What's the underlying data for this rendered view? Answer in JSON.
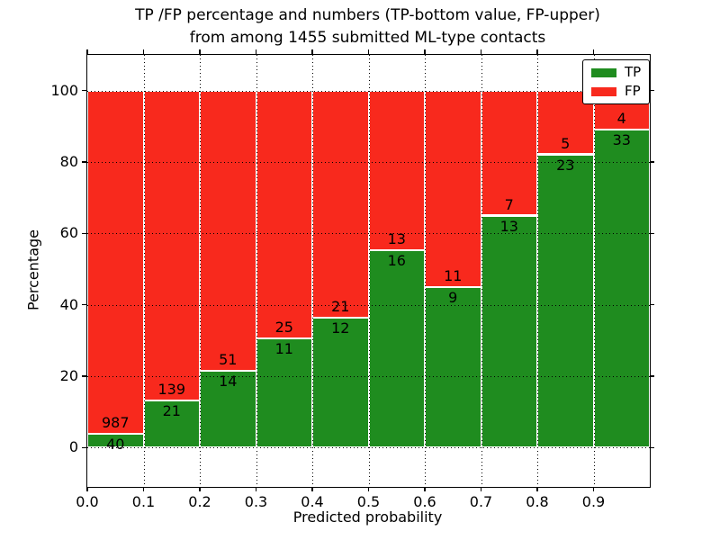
{
  "figure": {
    "title_line1": "TP /FP percentage and numbers (TP-bottom value, FP-upper)",
    "title_line2": "from among 1455 submitted ML-type contacts"
  },
  "chart_data": {
    "type": "bar",
    "subtype": "stacked-100-percent",
    "title": "TP /FP percentage and numbers (TP-bottom value, FP-upper) from among 1455 submitted ML-type contacts",
    "xlabel": "Predicted probability",
    "ylabel": "Percentage",
    "total_contacts": 1455,
    "bin_width": 0.1,
    "bins": [
      0.0,
      0.1,
      0.2,
      0.3,
      0.4,
      0.5,
      0.6,
      0.7,
      0.8,
      0.9
    ],
    "x_tick_labels": [
      "0.0",
      "0.1",
      "0.2",
      "0.3",
      "0.4",
      "0.5",
      "0.6",
      "0.7",
      "0.8",
      "0.9"
    ],
    "y_ticks": [
      0,
      20,
      40,
      60,
      80,
      100
    ],
    "xlim": [
      0.0,
      1.0
    ],
    "ylim": [
      -11,
      110
    ],
    "grid": "dotted",
    "legend_position": "upper-right",
    "series": [
      {
        "name": "TP",
        "color": "#1f8c1f",
        "counts": [
          40,
          21,
          14,
          11,
          12,
          16,
          9,
          13,
          23,
          33
        ]
      },
      {
        "name": "FP",
        "color": "#f8291d",
        "counts": [
          987,
          139,
          51,
          25,
          21,
          13,
          11,
          7,
          5,
          4
        ]
      }
    ],
    "tp_percent_by_bin": [
      3.9,
      13.1,
      21.5,
      30.6,
      36.4,
      55.2,
      45.0,
      65.0,
      82.1,
      89.2
    ]
  },
  "colors": {
    "tp": "#1f8c1f",
    "fp": "#f8291d",
    "grid": "#000000",
    "background": "#ffffff",
    "bar_edge": "#ffffff"
  }
}
